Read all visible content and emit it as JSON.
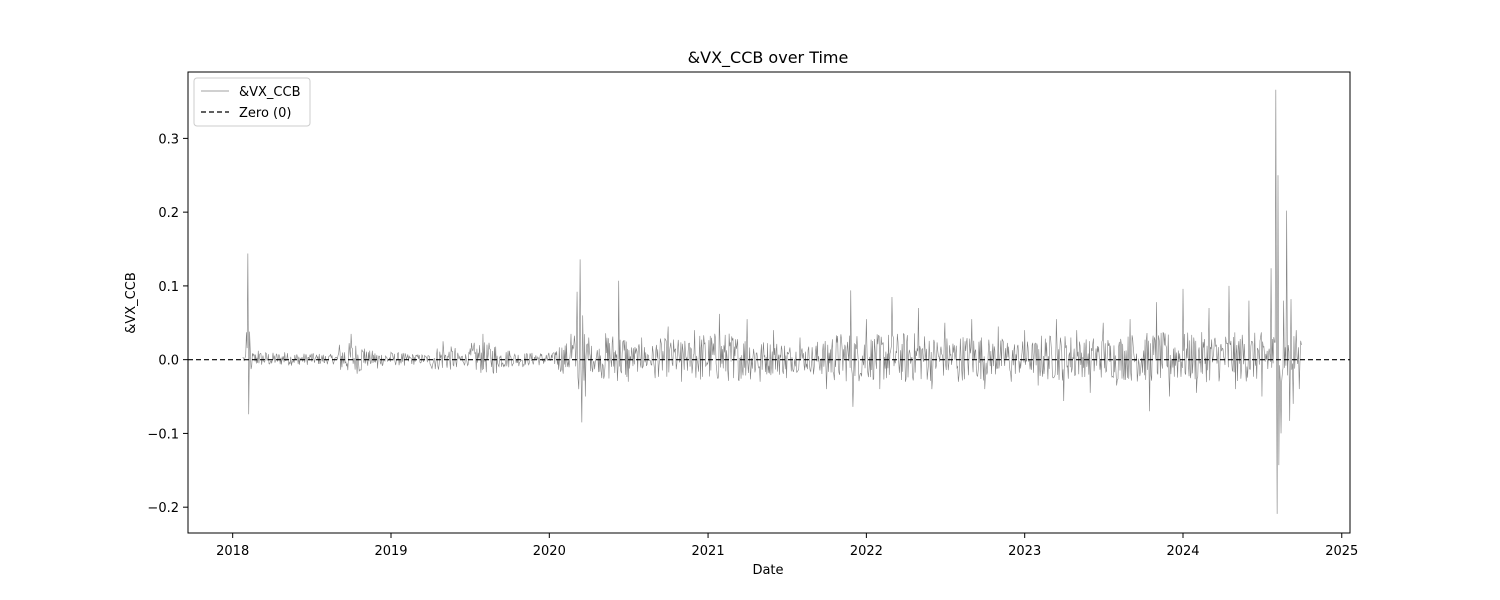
{
  "chart_data": {
    "type": "line",
    "title": "&VX_CCB over Time",
    "xlabel": "Date",
    "ylabel": "&VX_CCB",
    "xlim": [
      "2017-09-20",
      "2025-01-20"
    ],
    "ylim": [
      -0.235,
      0.39
    ],
    "x_ticks": [
      "2018",
      "2019",
      "2020",
      "2021",
      "2022",
      "2023",
      "2024",
      "2025"
    ],
    "y_ticks": [
      "−0.2",
      "−0.1",
      "0.0",
      "0.1",
      "0.2",
      "0.3"
    ],
    "y_tick_values": [
      -0.2,
      -0.1,
      0.0,
      0.1,
      0.2,
      0.3
    ],
    "grid": false,
    "legend": {
      "placement": "top-left",
      "entries": [
        "&VX_CCB",
        "Zero (0)"
      ]
    },
    "series": [
      {
        "name": "&VX_CCB",
        "color": "#808080",
        "x": [
          "2018-01-24",
          "2018-01-31",
          "2018-02-05",
          "2018-02-07",
          "2018-02-09",
          "2018-02-14",
          "2018-03-01",
          "2018-04-01",
          "2018-05-01",
          "2018-06-01",
          "2018-07-01",
          "2018-08-01",
          "2018-09-01",
          "2018-10-01",
          "2018-11-01",
          "2018-12-01",
          "2019-01-01",
          "2019-02-01",
          "2019-03-01",
          "2019-04-01",
          "2019-05-01",
          "2019-06-01",
          "2019-07-01",
          "2019-08-01",
          "2019-09-01",
          "2019-10-01",
          "2019-11-01",
          "2019-12-01",
          "2020-01-15",
          "2020-02-20",
          "2020-03-05",
          "2020-03-09",
          "2020-03-12",
          "2020-03-16",
          "2020-03-18",
          "2020-03-24",
          "2020-04-01",
          "2020-05-01",
          "2020-06-09",
          "2020-07-01",
          "2020-08-01",
          "2020-09-01",
          "2020-10-01",
          "2020-11-01",
          "2020-12-01",
          "2021-01-27",
          "2021-03-01",
          "2021-04-01",
          "2021-05-01",
          "2021-06-01",
          "2021-07-01",
          "2021-08-01",
          "2021-09-01",
          "2021-10-01",
          "2021-11-26",
          "2021-12-01",
          "2022-01-01",
          "2022-02-01",
          "2022-03-01",
          "2022-04-01",
          "2022-05-01",
          "2022-06-01",
          "2022-07-01",
          "2022-08-01",
          "2022-09-01",
          "2022-10-01",
          "2022-11-01",
          "2022-12-01",
          "2023-01-01",
          "2023-02-01",
          "2023-03-15",
          "2023-04-01",
          "2023-05-01",
          "2023-06-01",
          "2023-07-01",
          "2023-08-01",
          "2023-09-01",
          "2023-10-16",
          "2023-11-01",
          "2023-12-01",
          "2024-01-01",
          "2024-02-01",
          "2024-03-01",
          "2024-04-16",
          "2024-05-01",
          "2024-06-01",
          "2024-07-01",
          "2024-07-22",
          "2024-08-02",
          "2024-08-05",
          "2024-08-07",
          "2024-08-09",
          "2024-08-14",
          "2024-08-20",
          "2024-08-27",
          "2024-09-03",
          "2024-09-06",
          "2024-09-11",
          "2024-09-18",
          "2024-09-25",
          "2024-09-30"
        ],
        "y": [
          0.003,
          0.005,
          0.144,
          -0.074,
          0.038,
          -0.008,
          0.012,
          -0.005,
          0.01,
          -0.006,
          0.008,
          -0.004,
          0.006,
          0.035,
          0.015,
          -0.012,
          0.01,
          -0.008,
          0.006,
          -0.006,
          0.025,
          -0.01,
          0.008,
          0.035,
          -0.018,
          0.012,
          -0.01,
          0.006,
          0.01,
          0.035,
          0.092,
          -0.04,
          0.136,
          -0.085,
          0.06,
          -0.05,
          0.03,
          -0.025,
          0.107,
          -0.03,
          0.03,
          -0.025,
          0.045,
          -0.03,
          0.04,
          0.062,
          -0.025,
          0.055,
          -0.03,
          0.04,
          -0.025,
          0.03,
          -0.02,
          -0.04,
          0.094,
          -0.064,
          0.055,
          -0.04,
          0.085,
          -0.03,
          0.07,
          -0.04,
          0.05,
          -0.03,
          0.055,
          -0.04,
          0.045,
          -0.03,
          0.04,
          -0.035,
          0.055,
          -0.056,
          0.04,
          -0.045,
          0.05,
          -0.035,
          0.055,
          -0.07,
          0.078,
          -0.05,
          0.096,
          -0.045,
          0.07,
          0.1,
          -0.04,
          0.08,
          -0.05,
          0.124,
          0.366,
          -0.209,
          0.25,
          -0.143,
          -0.1,
          0.08,
          0.202,
          -0.083,
          0.082,
          -0.06,
          0.04,
          -0.04,
          0.02
        ]
      },
      {
        "name": "Zero (0)",
        "color": "#000000",
        "dash": "dashed",
        "value": 0
      }
    ]
  }
}
